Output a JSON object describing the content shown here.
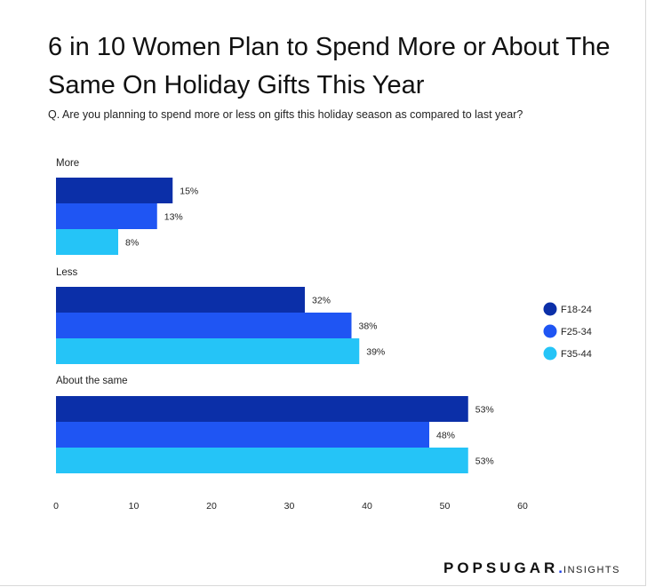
{
  "title": "6 in 10 Women Plan to Spend More or About The Same On Holiday Gifts This Year",
  "subtitle": "Q. Are you planning to spend more or less on gifts this holiday season as compared to last year?",
  "brand": {
    "name": "POPSUGAR",
    "dot": ".",
    "suffix": "INSIGHTS"
  },
  "chart_data": {
    "type": "bar",
    "orientation": "horizontal",
    "categories": [
      "More",
      "Less",
      "About the same"
    ],
    "series": [
      {
        "name": "F18-24",
        "color": "#0b2fa8",
        "values": [
          15,
          32,
          53
        ]
      },
      {
        "name": "F25-34",
        "color": "#1f55f3",
        "values": [
          13,
          38,
          48
        ]
      },
      {
        "name": "F35-44",
        "color": "#25c4f7",
        "values": [
          8,
          39,
          53
        ]
      }
    ],
    "value_suffix": "%",
    "xlim": [
      0,
      60
    ],
    "xticks": [
      0,
      10,
      20,
      30,
      40,
      50,
      60
    ],
    "grid": false,
    "legend": "right"
  }
}
